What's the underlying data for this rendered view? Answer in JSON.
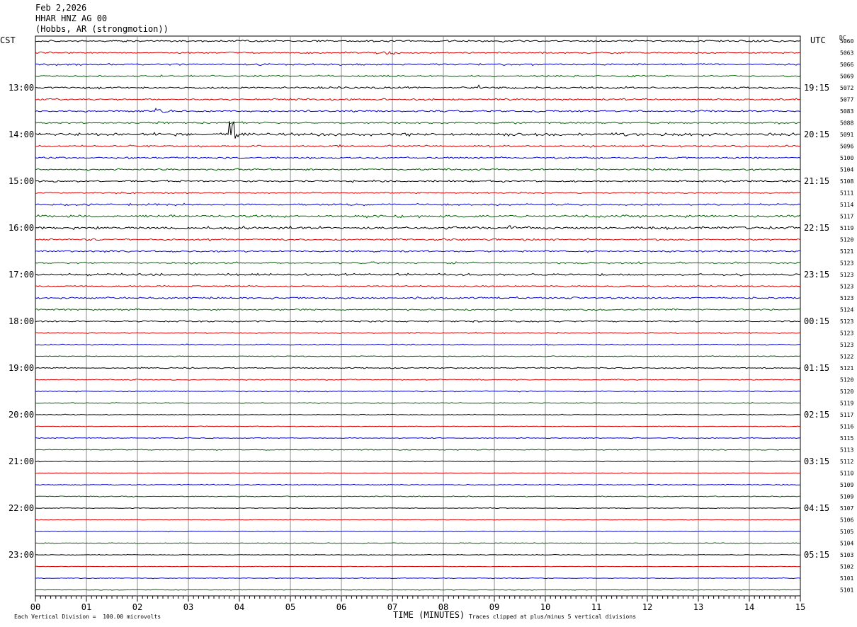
{
  "header": {
    "date": "Feb 2,2026",
    "station": "HHAR HNZ AG 00",
    "location": "(Hobbs, AR (strongmotion))"
  },
  "axis_labels": {
    "left_zone": "CST",
    "right_zone": "UTC",
    "dc_label": "DC",
    "x_title": "TIME (MINUTES)",
    "footer_scale": "Each Vertical Division =  100.00 microvolts",
    "footer_clip": "Traces clipped at plus/minus 5 vertical divisions"
  },
  "chart_data": {
    "type": "line",
    "title": "HHAR HNZ AG 00 (Hobbs, AR (strongmotion))",
    "xlabel": "TIME (MINUTES)",
    "xlim": [
      0,
      15
    ],
    "x_ticks": [
      "00",
      "01",
      "02",
      "03",
      "04",
      "05",
      "06",
      "07",
      "08",
      "09",
      "10",
      "11",
      "12",
      "13",
      "14",
      "15"
    ],
    "rows": 48,
    "row_minutes": 15,
    "grid": true,
    "trace_colors": [
      "#000000",
      "#dd0000",
      "#0000cc",
      "#006400"
    ],
    "left_hour_labels": [
      "13:00",
      "14:00",
      "15:00",
      "16:00",
      "17:00",
      "18:00",
      "19:00",
      "20:00",
      "21:00",
      "22:00",
      "23:00"
    ],
    "right_hour_labels": [
      "19:15",
      "20:15",
      "21:15",
      "22:15",
      "23:15",
      "00:15",
      "01:15",
      "02:15",
      "03:15",
      "04:15",
      "05:15"
    ],
    "dc_values": [
      "5060",
      "5063",
      "5066",
      "5069",
      "5072",
      "5077",
      "5083",
      "5088",
      "5091",
      "5096",
      "5100",
      "5104",
      "5108",
      "5111",
      "5114",
      "5117",
      "5119",
      "5120",
      "5121",
      "5123",
      "5123",
      "5123",
      "5123",
      "5124",
      "5123",
      "5123",
      "5123",
      "5122",
      "5121",
      "5120",
      "5120",
      "5119",
      "5117",
      "5116",
      "5115",
      "5113",
      "5112",
      "5110",
      "5109",
      "5109",
      "5107",
      "5106",
      "5105",
      "5104",
      "5103",
      "5102",
      "5101",
      "5101"
    ],
    "amplitude": [
      1.0,
      0.9,
      1.0,
      1.0,
      1.2,
      1.0,
      1.0,
      1.0,
      1.6,
      1.1,
      0.9,
      0.9,
      1.0,
      0.9,
      1.0,
      1.3,
      1.4,
      1.0,
      1.0,
      1.0,
      1.2,
      0.8,
      1.0,
      0.9,
      0.9,
      0.7,
      0.6,
      0.5,
      0.7,
      0.6,
      0.6,
      0.6,
      0.5,
      0.4,
      0.5,
      0.5,
      0.5,
      0.3,
      0.5,
      0.5,
      0.4,
      0.3,
      0.4,
      0.5,
      0.4,
      0.3,
      0.4,
      0.4
    ],
    "events": [
      {
        "row": 1,
        "minute": 6.9,
        "amp": 3,
        "dur": 0.8
      },
      {
        "row": 4,
        "minute": 8.7,
        "amp": 5,
        "dur": 0.1
      },
      {
        "row": 6,
        "minute": 2.3,
        "amp": 4,
        "dur": 1.0
      },
      {
        "row": 8,
        "minute": 3.8,
        "amp": 26,
        "dur": 0.45
      },
      {
        "row": 8,
        "minute": 1.3,
        "amp": 3,
        "dur": 1.6
      },
      {
        "row": 15,
        "minute": 7.5,
        "amp": 3,
        "dur": 0.3
      },
      {
        "row": 16,
        "minute": 9.2,
        "amp": 3,
        "dur": 1.2
      },
      {
        "row": 16,
        "minute": 12.1,
        "amp": 3,
        "dur": 1.0
      },
      {
        "row": 22,
        "minute": 4.6,
        "amp": 3,
        "dur": 0.5
      },
      {
        "row": 20,
        "minute": 7.9,
        "amp": 3,
        "dur": 0.1
      }
    ]
  }
}
